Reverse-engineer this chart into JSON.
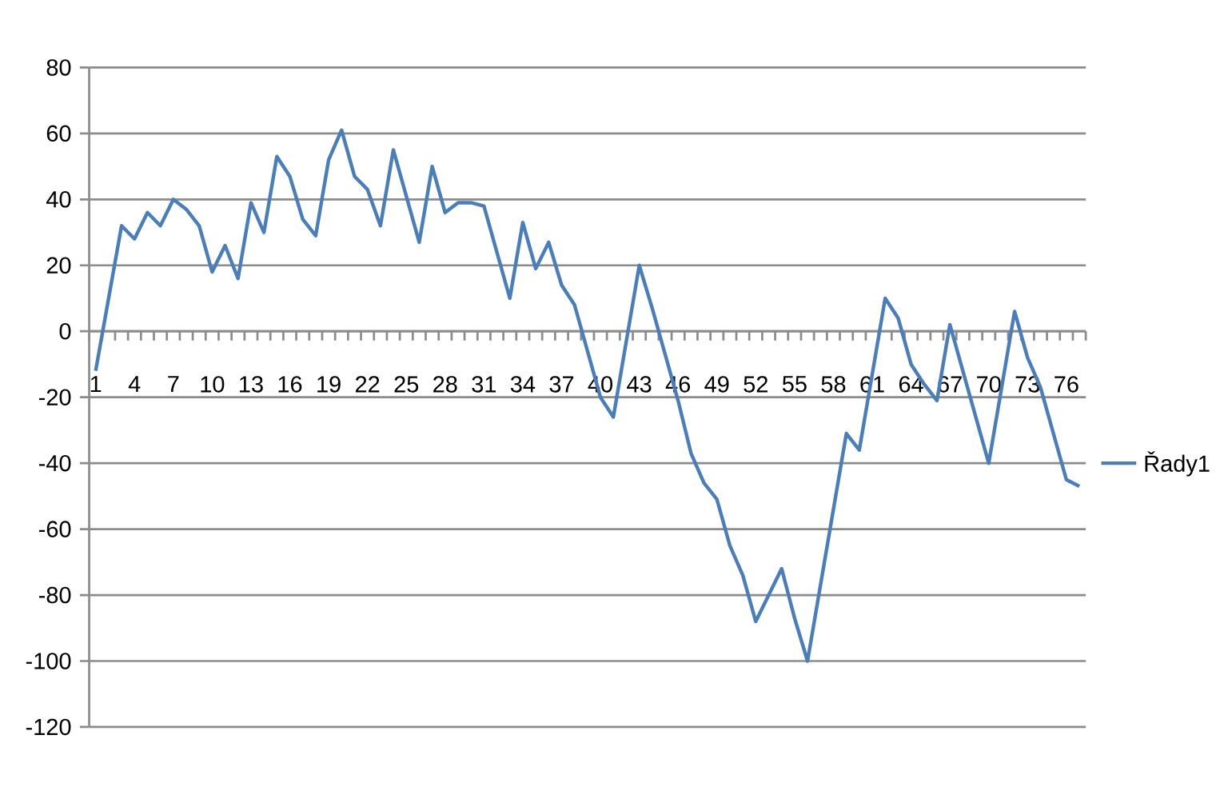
{
  "chart_data": {
    "type": "line",
    "categories": [
      "1",
      null,
      null,
      "4",
      null,
      null,
      "7",
      null,
      null,
      "10",
      null,
      null,
      "13",
      null,
      null,
      "16",
      null,
      null,
      "19",
      null,
      null,
      "22",
      null,
      null,
      "25",
      null,
      null,
      "28",
      null,
      null,
      "31",
      null,
      null,
      "34",
      null,
      null,
      "37",
      null,
      null,
      "40",
      null,
      null,
      "43",
      null,
      null,
      "46",
      null,
      null,
      "49",
      null,
      null,
      "52",
      null,
      null,
      "55",
      null,
      null,
      "58",
      null,
      null,
      "61",
      null,
      null,
      "64",
      null,
      null,
      "67",
      null,
      null,
      "70",
      null,
      null,
      "73",
      null,
      null,
      "76",
      null
    ],
    "series": [
      {
        "name": "Řady1",
        "color": "#4a7ebb",
        "values": [
          -12,
          10,
          32,
          28,
          36,
          32,
          40,
          37,
          32,
          18,
          26,
          16,
          39,
          30,
          53,
          47,
          34,
          29,
          52,
          61,
          47,
          43,
          32,
          55,
          41,
          27,
          50,
          36,
          39,
          39,
          38,
          24,
          10,
          33,
          19,
          27,
          14,
          8,
          -6,
          -20,
          -26,
          -3,
          20,
          7,
          -7,
          -21,
          -37,
          -46,
          -51,
          -65,
          -74,
          -88,
          -80,
          -72,
          -87,
          -100,
          -77,
          -54,
          -31,
          -36,
          -13,
          10,
          4,
          -10,
          -16,
          -21,
          2,
          -12,
          -26,
          -40,
          -17,
          6,
          -8,
          -17,
          -31,
          -45,
          -47
        ]
      }
    ],
    "ylim": [
      -120,
      80
    ],
    "yticks": [
      -120,
      -100,
      -80,
      -60,
      -40,
      -20,
      0,
      20,
      40,
      60,
      80
    ],
    "grid": "y",
    "legend": "right"
  }
}
